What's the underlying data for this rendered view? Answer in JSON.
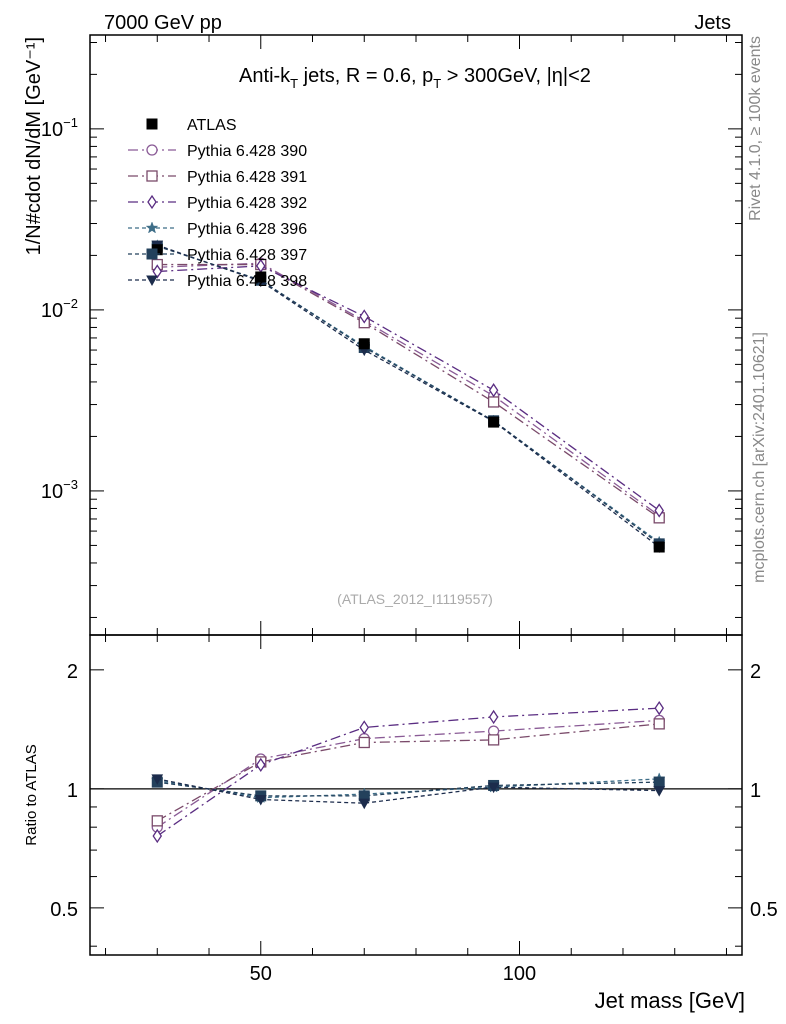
{
  "header": {
    "left": "7000 GeV pp",
    "right": "Jets"
  },
  "side": {
    "rivet": "Rivet 4.1.0, ≥ 100k events",
    "mcplots": "mcplots.cern.ch [arXiv:2401.10621]"
  },
  "chart_data": {
    "type": "line",
    "title": "Anti-k_T jets, R = 0.6, p_T > 300GeV, |η|<2",
    "watermark": "(ATLAS_2012_I1119557)",
    "xlabel": "Jet mass [GeV]",
    "ylabel": "1/N#cdot dN/dM [GeV⁻¹]",
    "ratio_ylabel": "Ratio to ATLAS",
    "xlim": [
      17,
      143
    ],
    "ylim": [
      0.00016,
      0.33
    ],
    "ratio_ylim": [
      0.38,
      2.45
    ],
    "x_ticks": [
      50,
      100
    ],
    "y_ticks": [
      {
        "value": 0.1,
        "label": "10^-1"
      },
      {
        "value": 0.01,
        "label": "10^-2"
      },
      {
        "value": 0.001,
        "label": "10^-3"
      }
    ],
    "ratio_ticks": [
      {
        "value": 0.5,
        "label": "0.5"
      },
      {
        "value": 1,
        "label": "1"
      },
      {
        "value": 2,
        "label": "2"
      }
    ],
    "x": [
      30,
      50,
      70,
      95,
      127
    ],
    "data": {
      "name": "ATLAS",
      "values": [
        0.0215,
        0.0152,
        0.0065,
        0.0024,
        0.00049
      ]
    },
    "series": [
      {
        "name": "Pythia 6.428 390",
        "color": "#8a5b96",
        "marker": "circle-open",
        "dash": "10,4,2,4",
        "values": [
          0.0172,
          0.0181,
          0.0087,
          0.00335,
          0.00073
        ],
        "ratio": [
          0.8,
          1.19,
          1.34,
          1.4,
          1.49
        ]
      },
      {
        "name": "Pythia 6.428 391",
        "color": "#7a4a6a",
        "marker": "square-open",
        "dash": "10,4,2,4",
        "values": [
          0.0178,
          0.0178,
          0.0085,
          0.0031,
          0.00071
        ],
        "ratio": [
          0.83,
          1.17,
          1.31,
          1.33,
          1.46
        ]
      },
      {
        "name": "Pythia 6.428 392",
        "color": "#5a2d82",
        "marker": "diamond-open",
        "dash": "10,4,2,4",
        "values": [
          0.0163,
          0.0175,
          0.0092,
          0.0036,
          0.00078
        ],
        "ratio": [
          0.76,
          1.15,
          1.43,
          1.52,
          1.6
        ]
      },
      {
        "name": "Pythia 6.428 396",
        "color": "#3e6e88",
        "marker": "star",
        "dash": "4,3",
        "values": [
          0.0226,
          0.0145,
          0.0063,
          0.00243,
          0.00052
        ],
        "ratio": [
          1.05,
          0.95,
          0.97,
          1.01,
          1.06
        ]
      },
      {
        "name": "Pythia 6.428 397",
        "color": "#23415c",
        "marker": "square-filled",
        "dash": "4,3",
        "values": [
          0.0225,
          0.0146,
          0.0062,
          0.00244,
          0.00051
        ],
        "ratio": [
          1.04,
          0.96,
          0.96,
          1.02,
          1.04
        ]
      },
      {
        "name": "Pythia 6.428 398",
        "color": "#1c2c4c",
        "marker": "triangle-down-filled",
        "dash": "4,3",
        "values": [
          0.0228,
          0.0144,
          0.006,
          0.00242,
          0.00049
        ],
        "ratio": [
          1.06,
          0.94,
          0.92,
          1.01,
          0.99
        ]
      }
    ]
  }
}
